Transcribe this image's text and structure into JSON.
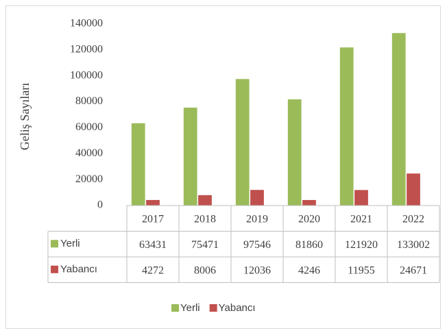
{
  "chart_data": {
    "type": "bar",
    "y_axis_label": "Geliş Sayıları",
    "categories": [
      "2017",
      "2018",
      "2019",
      "2020",
      "2021",
      "2022"
    ],
    "series": [
      {
        "name": "Yerli",
        "color": "#9bbb59",
        "values": [
          63431,
          75471,
          97546,
          81860,
          121920,
          133002
        ]
      },
      {
        "name": "Yabancı",
        "color": "#c0504d",
        "values": [
          4272,
          8006,
          12036,
          4246,
          11955,
          24671
        ]
      }
    ],
    "ylim": [
      0,
      140000
    ],
    "yticks": [
      0,
      20000,
      40000,
      60000,
      80000,
      100000,
      120000,
      140000
    ],
    "legend": "bottom"
  }
}
